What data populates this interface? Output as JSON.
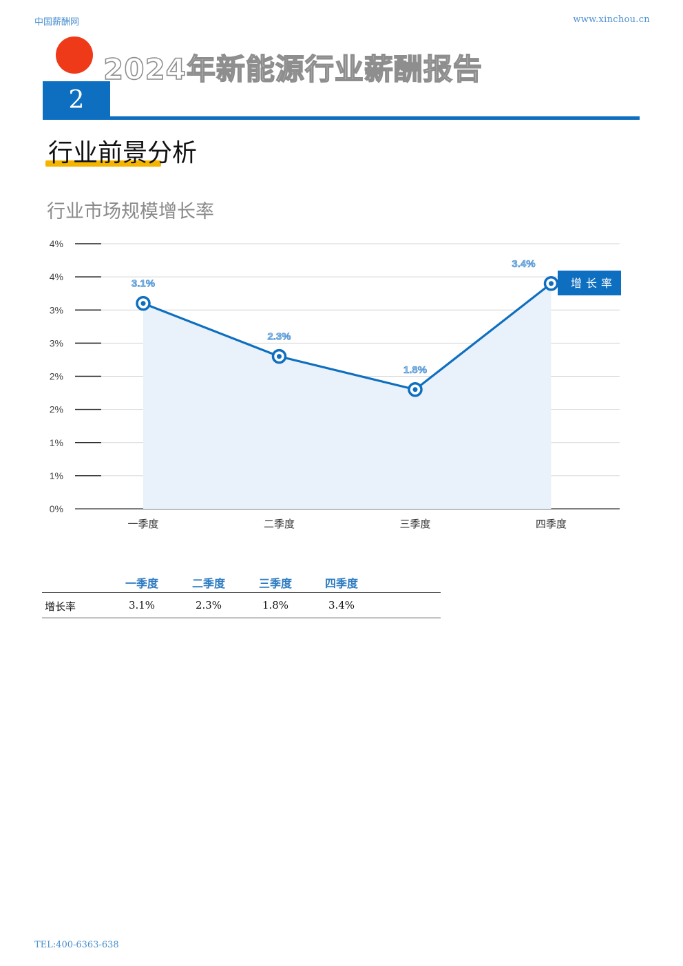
{
  "header": {
    "site_name": "中国薪酬网",
    "site_url": "www.xinchou.cn"
  },
  "report": {
    "title": "2024年新能源行业薪酬报告",
    "section_number": "2",
    "section_title": "行业前景分析"
  },
  "chart_title": "行业市场规模增长率",
  "chart_data": {
    "type": "line",
    "categories": [
      "一季度",
      "二季度",
      "三季度",
      "四季度"
    ],
    "series": [
      {
        "name": "增长率",
        "values": [
          3.1,
          2.3,
          1.8,
          3.4
        ],
        "labels": [
          "3.1%",
          "2.3%",
          "1.8%",
          "3.4%"
        ]
      }
    ],
    "ylim": [
      0,
      4
    ],
    "yticks": [
      0,
      0.5,
      1,
      1.5,
      2,
      2.5,
      3,
      3.5,
      4
    ],
    "ytick_labels": [
      "0%",
      "1%",
      "1%",
      "2%",
      "2%",
      "3%",
      "3%",
      "4%",
      "4%"
    ],
    "grid": true,
    "legend_position": "right",
    "line_color": "#0e6fc0",
    "fill_color": "#e9f1fa"
  },
  "table": {
    "headers": [
      "一季度",
      "二季度",
      "三季度",
      "四季度"
    ],
    "row_label": "增长率",
    "values": [
      "3.1%",
      "2.3%",
      "1.8%",
      "3.4%"
    ]
  },
  "footer": {
    "contact": "TEL:400-6363-638"
  }
}
